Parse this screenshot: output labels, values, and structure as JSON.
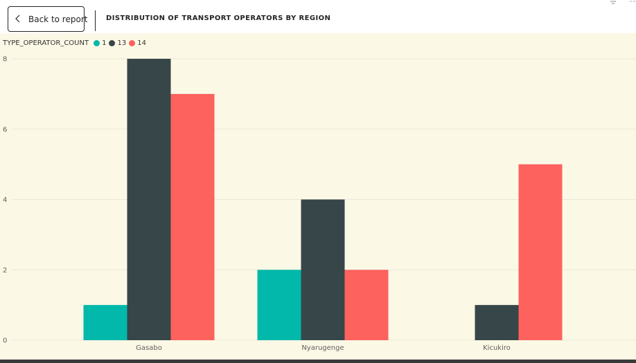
{
  "header": {
    "back_label": "Back to report",
    "title": "DISTRIBUTION OF TRANSPORT OPERATORS BY REGION"
  },
  "legend": {
    "title": "TYPE_OPERATOR_COUNT",
    "items": [
      {
        "label": "1",
        "color": "#01b8aa"
      },
      {
        "label": "13",
        "color": "#374649"
      },
      {
        "label": "14",
        "color": "#fd625e"
      }
    ]
  },
  "chart_data": {
    "type": "bar",
    "title": "DISTRIBUTION OF TRANSPORT OPERATORS BY REGION",
    "categories": [
      "Gasabo",
      "Nyarugenge",
      "Kicukiro"
    ],
    "series": [
      {
        "name": "1",
        "color": "#01b8aa",
        "values": [
          1,
          2,
          0
        ]
      },
      {
        "name": "13",
        "color": "#374649",
        "values": [
          8,
          4,
          1
        ]
      },
      {
        "name": "14",
        "color": "#fd625e",
        "values": [
          7,
          2,
          5
        ]
      }
    ],
    "ylim": [
      0,
      8
    ],
    "yticks": [
      "0",
      "2",
      "4",
      "6",
      "8"
    ],
    "grid": true,
    "legend_position": "top-left"
  }
}
